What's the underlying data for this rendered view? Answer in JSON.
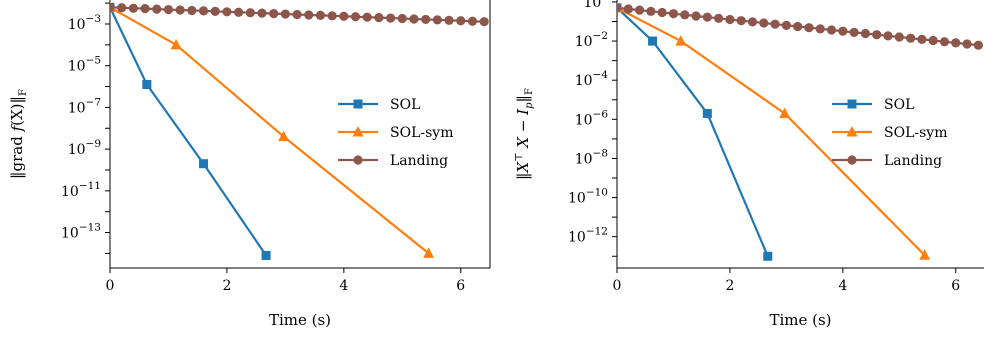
{
  "colors": {
    "SOL": "#1f77b4",
    "SOL-sym": "#ff7f0e",
    "Landing": "#8c564b"
  },
  "chart_data": [
    {
      "type": "line",
      "xlabel": "Time (s)",
      "ylabel": "‖grad f(X)‖F",
      "ylabel_parts": {
        "pre": "‖grad ",
        "f": "f",
        "post": "(X)‖",
        "sub": "F"
      },
      "log_y": true,
      "xlim": [
        0,
        6.5
      ],
      "ylim_log10": [
        -14.7,
        -1.85
      ],
      "xticks": [
        0,
        2,
        4,
        6
      ],
      "yticks_log10": [
        -13,
        -11,
        -9,
        -7,
        -5,
        -3
      ],
      "legend": "center-right",
      "series": [
        {
          "name": "SOL",
          "marker": "square",
          "x": [
            0,
            0.63,
            1.6,
            2.67
          ],
          "y_log10": [
            -2.2,
            -5.9,
            -9.7,
            -14.1
          ]
        },
        {
          "name": "SOL-sym",
          "marker": "triangle",
          "x": [
            0,
            1.13,
            2.97,
            5.45
          ],
          "y_log10": [
            -2.2,
            -4.0,
            -8.4,
            -14.0
          ]
        },
        {
          "name": "Landing",
          "marker": "circle",
          "x_start": 0,
          "x_step": 0.2,
          "count": 33,
          "y_log10_start": -2.2,
          "y_log10_per_x": -0.1077
        }
      ]
    },
    {
      "type": "line",
      "xlabel": "Time (s)",
      "ylabel": "‖X⊤X − Ip‖F",
      "ylabel_parts": {
        "pre": "‖X",
        "sup": "⊤",
        "mid": "X − I",
        "sub1": "p",
        "post": "‖",
        "sub": "F"
      },
      "log_y": true,
      "xlim": [
        0,
        6.5
      ],
      "ylim_log10": [
        -13.6,
        0.1
      ],
      "xticks": [
        0,
        2,
        4,
        6
      ],
      "yticks_log10": [
        -12,
        -10,
        -8,
        -6,
        -4,
        -2,
        0
      ],
      "legend": "center-right",
      "series": [
        {
          "name": "SOL",
          "marker": "square",
          "x": [
            0,
            0.63,
            1.6,
            2.67
          ],
          "y_log10": [
            -0.3,
            -2.0,
            -5.7,
            -13.0
          ]
        },
        {
          "name": "SOL-sym",
          "marker": "triangle",
          "x": [
            0,
            1.13,
            2.97,
            5.45
          ],
          "y_log10": [
            -0.3,
            -2.0,
            -5.7,
            -12.95
          ]
        },
        {
          "name": "Landing",
          "marker": "circle",
          "x_start": 0,
          "x_step": 0.2,
          "count": 33,
          "y_log10_start": -0.3,
          "y_log10_per_x": -0.2985
        }
      ]
    }
  ]
}
